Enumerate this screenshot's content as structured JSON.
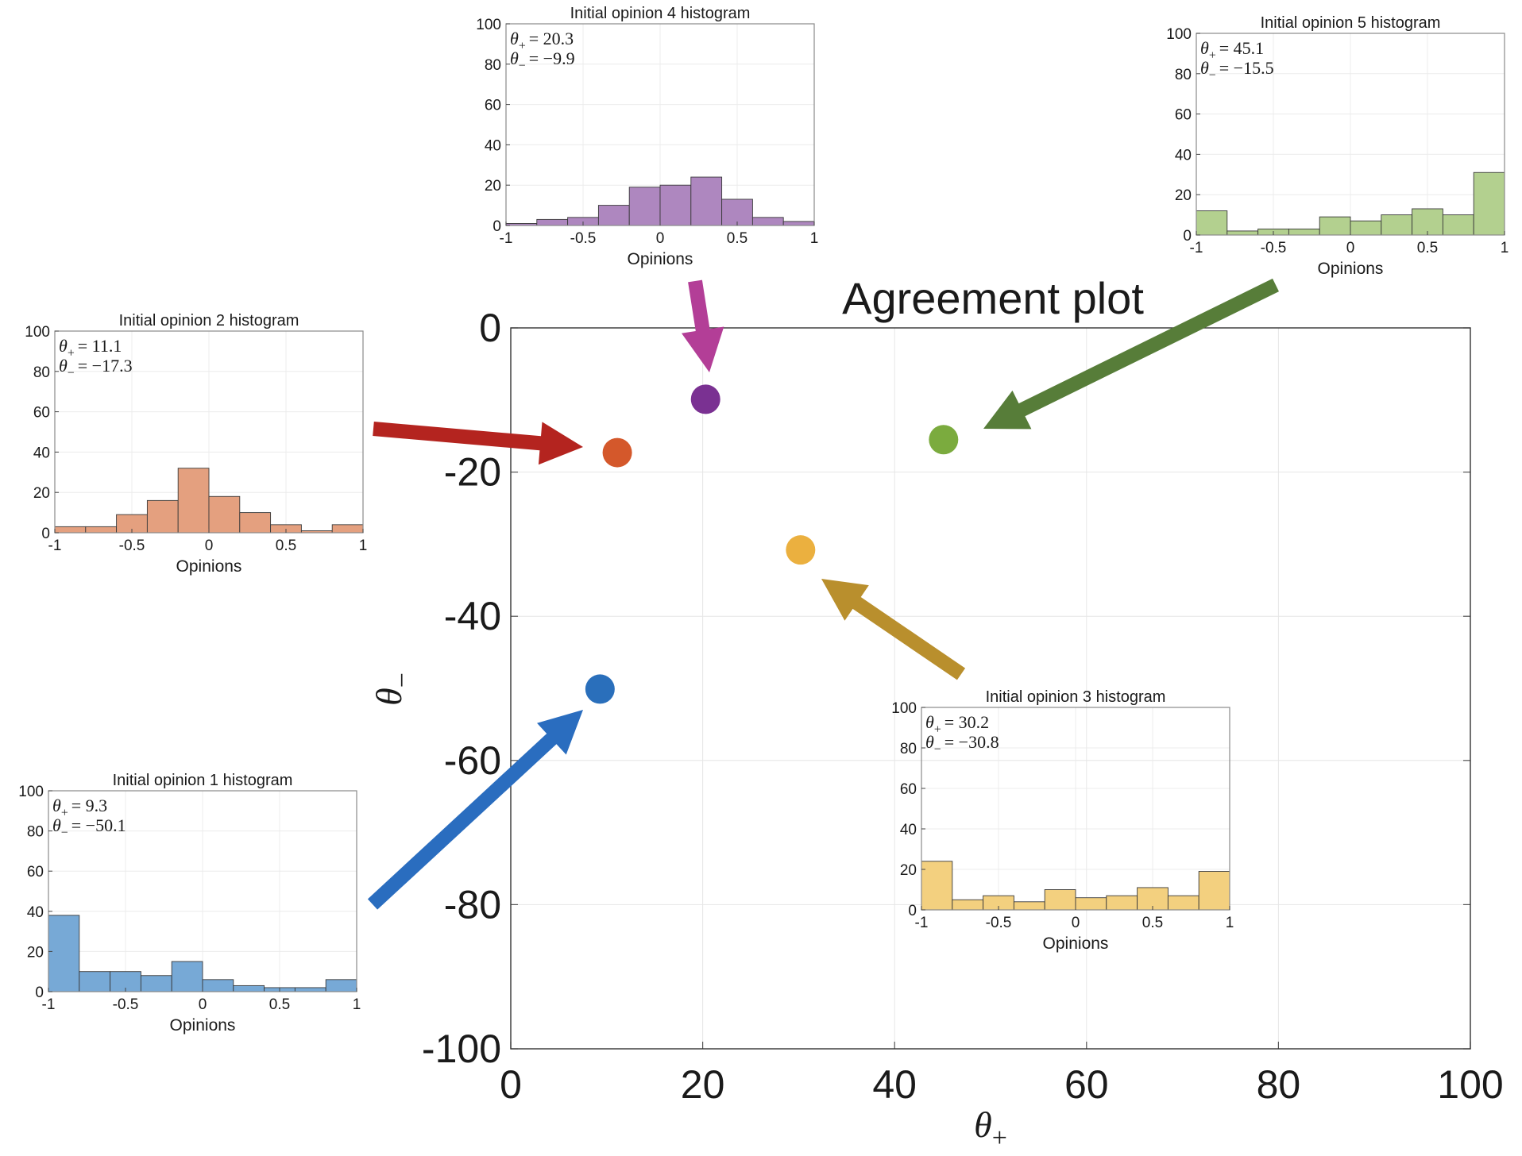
{
  "chart_data": [
    {
      "id": "agreement",
      "type": "scatter",
      "title": "Agreement plot",
      "xlabel": {
        "symbol": "θ",
        "sub": "+"
      },
      "ylabel": {
        "symbol": "θ",
        "sub": "−"
      },
      "xlim": [
        0,
        100
      ],
      "ylim": [
        -100,
        0
      ],
      "xticks": [
        0,
        20,
        40,
        60,
        80,
        100
      ],
      "yticks": [
        0,
        -20,
        -40,
        -60,
        -80,
        -100
      ],
      "grid": true,
      "points": [
        {
          "name": "Initial opinion 1",
          "x": 9.3,
          "y": -50.1,
          "color": "#2a6fbb"
        },
        {
          "name": "Initial opinion 2",
          "x": 11.1,
          "y": -17.3,
          "color": "#d4582b"
        },
        {
          "name": "Initial opinion 3",
          "x": 30.2,
          "y": -30.8,
          "color": "#ebb03f"
        },
        {
          "name": "Initial opinion 4",
          "x": 20.3,
          "y": -9.9,
          "color": "#7a3192"
        },
        {
          "name": "Initial opinion 5",
          "x": 45.1,
          "y": -15.5,
          "color": "#7bab3e"
        }
      ]
    },
    {
      "id": "h1",
      "type": "bar",
      "title": "Initial opinion 1 histogram",
      "xlabel": "Opinions",
      "xlim": [
        -1,
        1
      ],
      "ylim": [
        0,
        100
      ],
      "xticks": [
        "-1",
        "-0.5",
        "0",
        "0.5",
        "1"
      ],
      "yticks": [
        "0",
        "20",
        "40",
        "60",
        "80",
        "100"
      ],
      "values": [
        38,
        10,
        10,
        8,
        15,
        6,
        3,
        2,
        2,
        6
      ],
      "color": "#77a9d6",
      "annotation": {
        "plus_label": "θ",
        "plus_sub": "+",
        "plus_value": "= 9.3",
        "minus_label": "θ",
        "minus_sub": "−",
        "minus_value": "= −50.1"
      }
    },
    {
      "id": "h2",
      "type": "bar",
      "title": "Initial opinion 2 histogram",
      "xlabel": "Opinions",
      "xlim": [
        -1,
        1
      ],
      "ylim": [
        0,
        100
      ],
      "xticks": [
        "-1",
        "-0.5",
        "0",
        "0.5",
        "1"
      ],
      "yticks": [
        "0",
        "20",
        "40",
        "60",
        "80",
        "100"
      ],
      "values": [
        3,
        3,
        9,
        16,
        32,
        18,
        10,
        4,
        1,
        4
      ],
      "color": "#e4a07f",
      "annotation": {
        "plus_label": "θ",
        "plus_sub": "+",
        "plus_value": "= 11.1",
        "minus_label": "θ",
        "minus_sub": "−",
        "minus_value": "= −17.3"
      }
    },
    {
      "id": "h3",
      "type": "bar",
      "title": "Initial opinion 3 histogram",
      "xlabel": "Opinions",
      "xlim": [
        -1,
        1
      ],
      "ylim": [
        0,
        100
      ],
      "xticks": [
        "-1",
        "-0.5",
        "0",
        "0.5",
        "1"
      ],
      "yticks": [
        "0",
        "20",
        "40",
        "60",
        "80",
        "100"
      ],
      "values": [
        24,
        5,
        7,
        4,
        10,
        6,
        7,
        11,
        7,
        19
      ],
      "color": "#f3d07f",
      "annotation": {
        "plus_label": "θ",
        "plus_sub": "+",
        "plus_value": "= 30.2",
        "minus_label": "θ",
        "minus_sub": "−",
        "minus_value": "= −30.8"
      }
    },
    {
      "id": "h4",
      "type": "bar",
      "title": "Initial opinion 4 histogram",
      "xlabel": "Opinions",
      "xlim": [
        -1,
        1
      ],
      "ylim": [
        0,
        100
      ],
      "xticks": [
        "-1",
        "-0.5",
        "0",
        "0.5",
        "1"
      ],
      "yticks": [
        "0",
        "20",
        "40",
        "60",
        "80",
        "100"
      ],
      "values": [
        1,
        3,
        4,
        10,
        19,
        20,
        24,
        13,
        4,
        2
      ],
      "color": "#ae87bf",
      "annotation": {
        "plus_label": "θ",
        "plus_sub": "+",
        "plus_value": "= 20.3",
        "minus_label": "θ",
        "minus_sub": "−",
        "minus_value": "= −9.9"
      }
    },
    {
      "id": "h5",
      "type": "bar",
      "title": "Initial opinion 5 histogram",
      "xlabel": "Opinions",
      "xlim": [
        -1,
        1
      ],
      "ylim": [
        0,
        100
      ],
      "xticks": [
        "-1",
        "-0.5",
        "0",
        "0.5",
        "1"
      ],
      "yticks": [
        "0",
        "20",
        "40",
        "60",
        "80",
        "100"
      ],
      "values": [
        12,
        2,
        3,
        3,
        9,
        7,
        10,
        13,
        10,
        31
      ],
      "color": "#b3d08f",
      "annotation": {
        "plus_label": "θ",
        "plus_sub": "+",
        "plus_value": "= 45.1",
        "minus_label": "θ",
        "minus_sub": "−",
        "minus_value": "= −15.5"
      }
    }
  ],
  "arrows": [
    {
      "name": "arrow-opinion-1",
      "color": "#2a6dbf"
    },
    {
      "name": "arrow-opinion-2",
      "color": "#b4241f"
    },
    {
      "name": "arrow-opinion-3",
      "color": "#b98f2d"
    },
    {
      "name": "arrow-opinion-4",
      "color": "#b33e97"
    },
    {
      "name": "arrow-opinion-5",
      "color": "#577d39"
    }
  ]
}
